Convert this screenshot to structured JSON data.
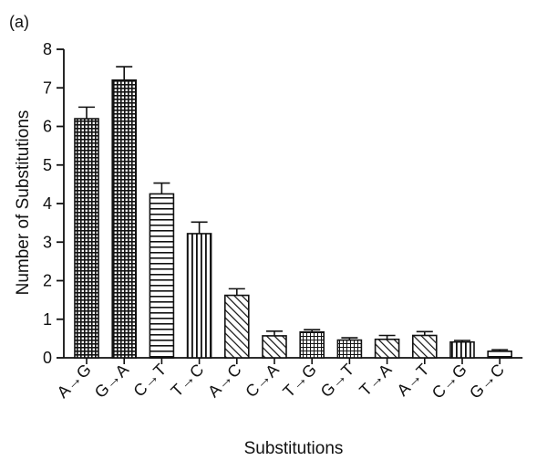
{
  "panel_label": "(a)",
  "chart_data": {
    "type": "bar",
    "title": "",
    "xlabel": "Substitutions",
    "ylabel": "Number of Substitutions",
    "ylim": [
      0,
      8
    ],
    "yticks": [
      0,
      1,
      2,
      3,
      4,
      5,
      6,
      7,
      8
    ],
    "grid": false,
    "categories": [
      "A→G",
      "G→A",
      "C→T",
      "T→C",
      "A→C",
      "C→A",
      "T→G",
      "G→T",
      "T→A",
      "A→T",
      "C→G",
      "G→C"
    ],
    "values": [
      6.2,
      7.2,
      4.25,
      3.22,
      1.62,
      0.57,
      0.67,
      0.46,
      0.48,
      0.58,
      0.41,
      0.17
    ],
    "errors": [
      0.3,
      0.35,
      0.28,
      0.3,
      0.17,
      0.12,
      0.06,
      0.06,
      0.1,
      0.1,
      0.04,
      0.04
    ],
    "patterns": [
      "dense-grid",
      "dense-grid",
      "horizontal",
      "vertical",
      "diagonal",
      "diagonal",
      "grid",
      "grid",
      "diagonal",
      "diagonal",
      "vertical",
      "horizontal"
    ]
  }
}
